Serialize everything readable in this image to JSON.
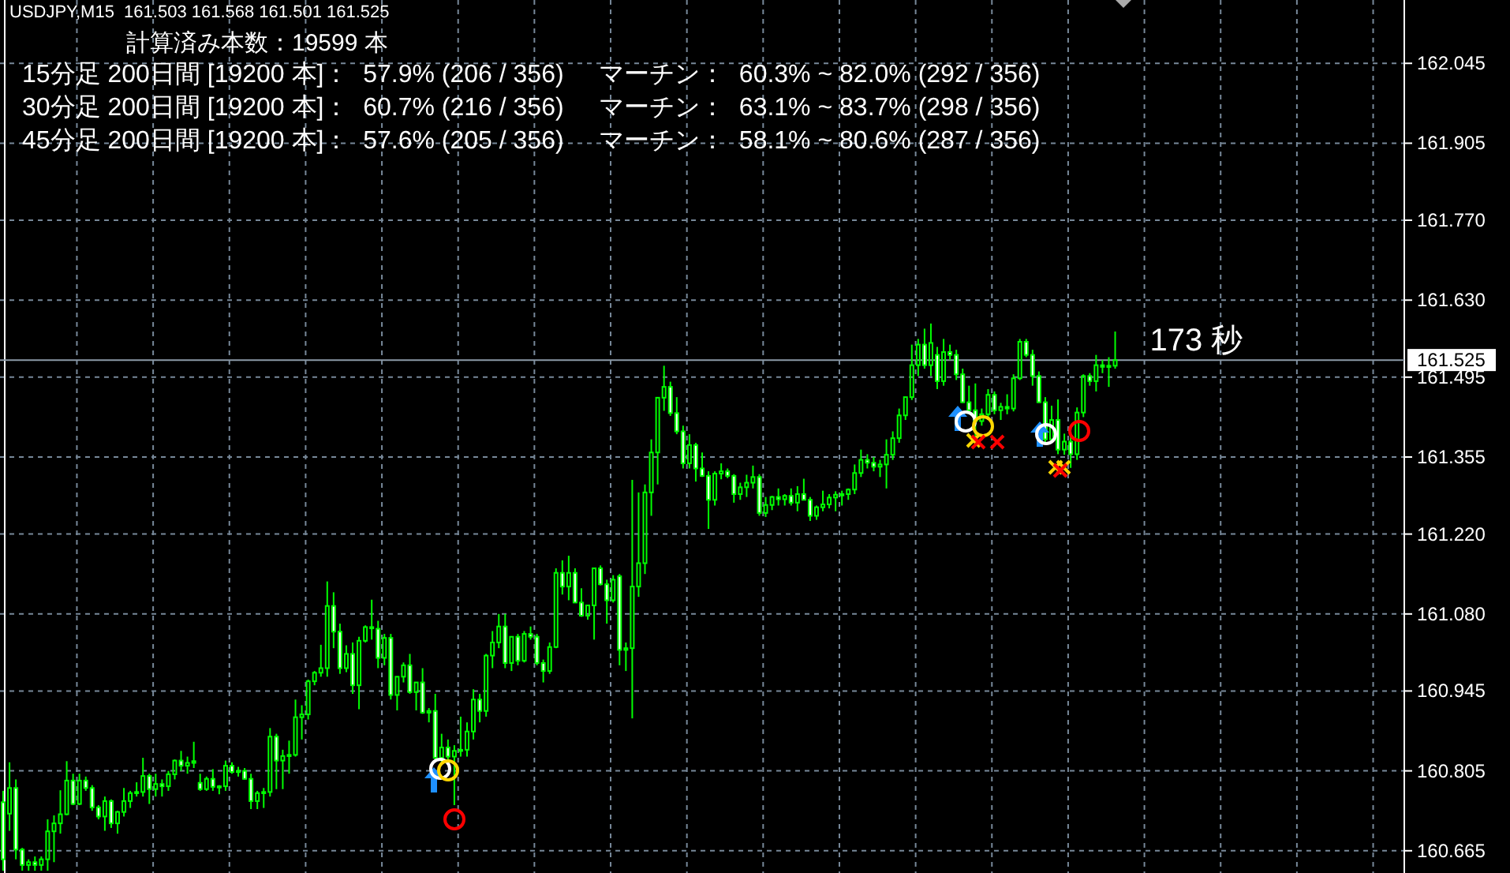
{
  "chart_data": {
    "type": "candlestick",
    "title": "USDJPY,M15  161.503 161.568 161.501 161.525",
    "annotations": [
      "計算済み本数：19599 本",
      "15分足 200日間 [19200 本]：  57.9% (206 / 356)     マーチン：  60.3% ~ 82.0% (292 / 356)",
      "30分足 200日間 [19200 本]：  60.7% (216 / 356)     マーチン：  63.1% ~ 83.7% (298 / 356)",
      "45分足 200日間 [19200 本]：  57.6% (205 / 356)     マーチン：  58.1% ~ 80.6% (287 / 356)",
      "173 秒"
    ],
    "categories": [
      null,
      null,
      null,
      null,
      null,
      null,
      null,
      null,
      null,
      null,
      null,
      null,
      null,
      null,
      null,
      null,
      null,
      null,
      null,
      null,
      null,
      null,
      null,
      null,
      null,
      null,
      null,
      null,
      null,
      null,
      null,
      null,
      null,
      null,
      null,
      null,
      null,
      null,
      null,
      null,
      null,
      null,
      null,
      null,
      null,
      null,
      null,
      null,
      null,
      null,
      null,
      null,
      null,
      null,
      null,
      null,
      null,
      null,
      null,
      null,
      null,
      null,
      null,
      null,
      null,
      null,
      null,
      null,
      null,
      null,
      null,
      null,
      null,
      null,
      null,
      null,
      null,
      null,
      null,
      null,
      null,
      null,
      null,
      null,
      null,
      null,
      null,
      null,
      null,
      null,
      null,
      null,
      null,
      null,
      null,
      null,
      null,
      null,
      null,
      null,
      null,
      null,
      null,
      null,
      null,
      null,
      null,
      null,
      null,
      null,
      null,
      null,
      null,
      null,
      null,
      null,
      null,
      null,
      null,
      null,
      null,
      null,
      null,
      null,
      null,
      null,
      null,
      null,
      null,
      null,
      null,
      null,
      null,
      null,
      null,
      null,
      null,
      null,
      null,
      null,
      null,
      null,
      null,
      null,
      null,
      null,
      null,
      null,
      null,
      null,
      null,
      null,
      null,
      null,
      null,
      null,
      null,
      null,
      null,
      null,
      null,
      null,
      null,
      null,
      null,
      null,
      null,
      null,
      null,
      null,
      null,
      null,
      null,
      null,
      null,
      null,
      null,
      null,
      null,
      null,
      null,
      null,
      null,
      null,
      null,
      null,
      null,
      null,
      null,
      null,
      null,
      null,
      null,
      null,
      null,
      null,
      null,
      null,
      null,
      null,
      null,
      null,
      null,
      null,
      null,
      null,
      null,
      null,
      null,
      null,
      null,
      null,
      null,
      null,
      null,
      null,
      null,
      null,
      null,
      null,
      null
    ],
    "ohlc": [
      [
        160.75,
        160.77,
        160.63,
        160.65
      ],
      [
        160.73,
        160.82,
        160.7,
        160.775
      ],
      [
        160.775,
        160.79,
        160.65,
        160.667
      ],
      [
        160.667,
        160.67,
        160.63,
        160.64
      ],
      [
        160.64,
        160.65,
        160.63,
        160.645
      ],
      [
        160.645,
        160.655,
        160.63,
        160.64
      ],
      [
        160.64,
        160.655,
        160.63,
        160.65
      ],
      [
        160.65,
        160.72,
        160.63,
        160.699
      ],
      [
        160.699,
        160.727,
        160.645,
        160.713
      ],
      [
        160.713,
        160.771,
        160.695,
        160.729
      ],
      [
        160.729,
        160.822,
        160.727,
        160.788
      ],
      [
        160.788,
        160.8,
        160.745,
        160.747
      ],
      [
        160.747,
        160.8,
        160.745,
        160.788
      ],
      [
        160.788,
        160.795,
        160.77,
        160.775
      ],
      [
        160.775,
        160.78,
        160.735,
        160.741
      ],
      [
        160.741,
        160.745,
        160.72,
        160.725
      ],
      [
        160.725,
        160.76,
        160.7,
        160.752
      ],
      [
        160.752,
        160.755,
        160.705,
        160.713
      ],
      [
        160.713,
        160.735,
        160.695,
        160.733
      ],
      [
        160.733,
        160.775,
        160.725,
        160.752
      ],
      [
        160.752,
        160.77,
        160.74,
        160.766
      ],
      [
        160.766,
        160.785,
        160.76,
        160.768
      ],
      [
        160.768,
        160.828,
        160.76,
        160.796
      ],
      [
        160.796,
        160.8,
        160.747,
        160.773
      ],
      [
        160.773,
        160.8,
        160.76,
        160.782
      ],
      [
        160.782,
        160.79,
        160.76,
        160.778
      ],
      [
        160.778,
        160.805,
        160.77,
        160.799
      ],
      [
        160.799,
        160.825,
        160.79,
        160.823
      ],
      [
        160.823,
        160.84,
        160.805,
        160.814
      ],
      [
        160.814,
        160.83,
        160.8,
        160.819
      ],
      [
        160.819,
        160.856,
        160.81,
        160.822
      ],
      [
        160.784,
        160.8,
        160.77,
        160.773
      ],
      [
        160.773,
        160.795,
        160.77,
        160.791
      ],
      [
        160.791,
        160.808,
        160.77,
        160.777
      ],
      [
        160.777,
        160.78,
        160.764,
        160.778
      ],
      [
        160.778,
        160.823,
        160.77,
        160.814
      ],
      [
        160.814,
        160.82,
        160.8,
        160.803
      ],
      [
        160.803,
        160.812,
        160.795,
        160.805
      ],
      [
        160.805,
        160.81,
        160.79,
        160.791
      ],
      [
        160.791,
        160.8,
        160.738,
        160.752
      ],
      [
        160.752,
        160.77,
        160.738,
        160.766
      ],
      [
        160.766,
        160.775,
        160.74,
        160.768
      ],
      [
        160.768,
        160.88,
        160.76,
        160.865
      ],
      [
        160.865,
        160.87,
        160.773,
        160.823
      ],
      [
        160.823,
        160.842,
        160.773,
        160.831
      ],
      [
        160.831,
        160.858,
        160.8,
        160.833
      ],
      [
        160.833,
        160.93,
        160.83,
        160.899
      ],
      [
        160.899,
        160.92,
        160.86,
        160.904
      ],
      [
        160.904,
        160.965,
        160.895,
        160.962
      ],
      [
        160.962,
        160.98,
        160.955,
        160.977
      ],
      [
        160.977,
        161.026,
        160.97,
        160.985
      ],
      [
        160.985,
        161.137,
        160.97,
        161.094
      ],
      [
        161.094,
        161.118,
        161.02,
        161.049
      ],
      [
        161.049,
        161.063,
        160.975,
        160.985
      ],
      [
        160.985,
        161.025,
        160.978,
        161.01
      ],
      [
        161.01,
        161.03,
        160.94,
        160.955
      ],
      [
        160.955,
        161.04,
        160.913,
        161.033
      ],
      [
        161.033,
        161.06,
        161.03,
        161.057
      ],
      [
        161.057,
        161.105,
        161.035,
        161.055
      ],
      [
        161.054,
        161.068,
        160.985,
        161.003
      ],
      [
        161.003,
        161.045,
        160.99,
        161.038
      ],
      [
        161.038,
        161.045,
        160.93,
        160.938
      ],
      [
        160.938,
        160.97,
        160.911,
        160.97
      ],
      [
        160.97,
        160.995,
        160.96,
        160.99
      ],
      [
        160.99,
        161.01,
        160.94,
        160.943
      ],
      [
        160.943,
        160.96,
        160.911,
        160.96
      ],
      [
        160.96,
        160.985,
        160.905,
        160.907
      ],
      [
        160.907,
        160.915,
        160.89,
        160.91
      ],
      [
        160.91,
        160.94,
        160.82,
        160.828
      ],
      [
        160.828,
        160.87,
        160.82,
        160.846
      ],
      [
        160.846,
        160.86,
        160.82,
        160.83
      ],
      [
        160.83,
        160.85,
        160.745,
        160.84
      ],
      [
        160.84,
        160.9,
        160.83,
        160.842
      ],
      [
        160.842,
        160.89,
        160.83,
        160.874
      ],
      [
        160.874,
        160.948,
        160.86,
        160.93
      ],
      [
        160.93,
        160.94,
        160.89,
        160.91
      ],
      [
        160.91,
        161.01,
        160.9,
        161.007
      ],
      [
        161.007,
        161.05,
        160.985,
        161.03
      ],
      [
        161.03,
        161.08,
        161.02,
        161.058
      ],
      [
        161.058,
        161.08,
        160.985,
        160.994
      ],
      [
        160.994,
        161.04,
        160.98,
        161.04
      ],
      [
        161.04,
        161.045,
        160.99,
        160.998
      ],
      [
        160.998,
        161.05,
        160.995,
        161.045
      ],
      [
        161.045,
        161.058,
        161.035,
        161.04
      ],
      [
        161.04,
        161.045,
        160.99,
        160.994
      ],
      [
        160.994,
        161.0,
        160.96,
        160.98
      ],
      [
        160.98,
        161.03,
        160.975,
        161.022
      ],
      [
        161.022,
        161.16,
        161.02,
        161.152
      ],
      [
        161.152,
        161.174,
        161.114,
        161.128
      ],
      [
        161.128,
        161.182,
        161.104,
        161.152
      ],
      [
        161.152,
        161.16,
        161.1,
        161.1
      ],
      [
        161.1,
        161.125,
        161.075,
        161.077
      ],
      [
        161.077,
        161.095,
        161.07,
        161.095
      ],
      [
        161.095,
        161.16,
        161.035,
        161.16
      ],
      [
        161.16,
        161.165,
        161.13,
        161.132
      ],
      [
        161.132,
        161.14,
        161.063,
        161.104
      ],
      [
        161.104,
        161.148,
        161.1,
        161.14
      ],
      [
        161.146,
        161.15,
        160.99,
        161.017
      ],
      [
        161.017,
        161.03,
        160.98,
        161.02
      ],
      [
        161.02,
        161.315,
        160.897,
        161.128
      ],
      [
        161.128,
        161.293,
        161.11,
        161.169
      ],
      [
        161.169,
        161.307,
        161.15,
        161.293
      ],
      [
        161.293,
        161.386,
        161.252,
        161.363
      ],
      [
        161.363,
        161.46,
        161.307,
        161.459
      ],
      [
        161.459,
        161.515,
        161.436,
        161.478
      ],
      [
        161.478,
        161.487,
        161.427,
        161.432
      ],
      [
        161.432,
        161.46,
        161.395,
        161.4
      ],
      [
        161.4,
        161.41,
        161.335,
        161.344
      ],
      [
        161.344,
        161.395,
        161.335,
        161.376
      ],
      [
        161.376,
        161.38,
        161.312,
        161.335
      ],
      [
        161.335,
        161.363,
        161.32,
        161.322
      ],
      [
        161.322,
        161.33,
        161.229,
        161.28
      ],
      [
        161.28,
        161.33,
        161.27,
        161.326
      ],
      [
        161.326,
        161.344,
        161.316,
        161.33
      ],
      [
        161.33,
        161.335,
        161.318,
        161.322
      ],
      [
        161.322,
        161.325,
        161.275,
        161.29
      ],
      [
        161.29,
        161.31,
        161.28,
        161.302
      ],
      [
        161.302,
        161.324,
        161.285,
        161.31
      ],
      [
        161.31,
        161.34,
        161.3,
        161.32
      ],
      [
        161.32,
        161.325,
        161.252,
        161.257
      ],
      [
        161.257,
        161.285,
        161.25,
        161.271
      ],
      [
        161.271,
        161.287,
        161.262,
        161.285
      ],
      [
        161.285,
        161.3,
        161.27,
        161.281
      ],
      [
        161.281,
        161.29,
        161.27,
        161.287
      ],
      [
        161.287,
        161.3,
        161.27,
        161.275
      ],
      [
        161.275,
        161.304,
        161.26,
        161.29
      ],
      [
        161.29,
        161.317,
        161.28,
        161.28
      ],
      [
        161.28,
        161.285,
        161.243,
        161.252
      ],
      [
        161.252,
        161.27,
        161.245,
        161.267
      ],
      [
        161.267,
        161.296,
        161.26,
        161.272
      ],
      [
        161.272,
        161.29,
        161.265,
        161.284
      ],
      [
        161.284,
        161.295,
        161.26,
        161.289
      ],
      [
        161.289,
        161.296,
        161.27,
        161.29
      ],
      [
        161.29,
        161.3,
        161.28,
        161.298
      ],
      [
        161.298,
        161.342,
        161.29,
        161.327
      ],
      [
        161.327,
        161.368,
        161.32,
        161.35
      ],
      [
        161.35,
        161.36,
        161.335,
        161.345
      ],
      [
        161.345,
        161.355,
        161.33,
        161.338
      ],
      [
        161.338,
        161.35,
        161.32,
        161.342
      ],
      [
        161.342,
        161.386,
        161.3,
        161.359
      ],
      [
        161.359,
        161.4,
        161.35,
        161.388
      ],
      [
        161.388,
        161.44,
        161.38,
        161.428
      ],
      [
        161.428,
        161.46,
        161.42,
        161.46
      ],
      [
        161.46,
        161.552,
        161.455,
        161.516
      ],
      [
        161.516,
        161.562,
        161.497,
        161.552
      ],
      [
        161.552,
        161.58,
        161.51,
        161.516
      ],
      [
        161.516,
        161.589,
        161.497,
        161.555
      ],
      [
        161.534,
        161.548,
        161.474,
        161.488
      ],
      [
        161.488,
        161.562,
        161.48,
        161.539
      ],
      [
        161.539,
        161.552,
        161.525,
        161.534
      ],
      [
        161.534,
        161.543,
        161.49,
        161.5
      ],
      [
        161.5,
        161.51,
        161.45,
        161.451
      ],
      [
        161.451,
        161.48,
        161.43,
        161.437
      ],
      [
        161.437,
        161.484,
        161.39,
        161.418
      ],
      [
        161.418,
        161.44,
        161.41,
        161.43
      ],
      [
        161.43,
        161.474,
        161.42,
        161.464
      ],
      [
        161.464,
        161.47,
        161.43,
        161.437
      ],
      [
        161.437,
        161.45,
        161.42,
        161.443
      ],
      [
        161.443,
        161.465,
        161.43,
        161.44
      ],
      [
        161.44,
        161.5,
        161.435,
        161.493
      ],
      [
        161.493,
        161.562,
        161.49,
        161.557
      ],
      [
        161.557,
        161.562,
        161.53,
        161.534
      ],
      [
        161.534,
        161.543,
        161.48,
        161.497
      ],
      [
        161.497,
        161.505,
        161.45,
        161.451
      ],
      [
        161.451,
        161.46,
        161.38,
        161.386
      ],
      [
        161.386,
        161.445,
        161.38,
        161.42
      ],
      [
        161.42,
        161.456,
        161.36,
        161.368
      ],
      [
        161.368,
        161.396,
        161.359,
        161.382
      ],
      [
        161.382,
        161.39,
        161.336,
        161.36
      ],
      [
        161.36,
        161.442,
        161.35,
        161.433
      ],
      [
        161.433,
        161.5,
        161.425,
        161.497
      ],
      [
        161.497,
        161.502,
        161.48,
        161.488
      ],
      [
        161.488,
        161.534,
        161.47,
        161.516
      ],
      [
        161.516,
        161.525,
        161.502,
        161.513
      ],
      [
        161.513,
        161.53,
        161.478,
        161.515
      ],
      [
        161.515,
        161.575,
        161.51,
        161.525
      ],
      null,
      null,
      null,
      null,
      null,
      null,
      null,
      null,
      null,
      null,
      null,
      null,
      null,
      null,
      null,
      null,
      null,
      null,
      null,
      null,
      null,
      null,
      null,
      null,
      null,
      null,
      null,
      null,
      null,
      null,
      null,
      null,
      null,
      null,
      null,
      null,
      null,
      null,
      null,
      null,
      null,
      null,
      null,
      null,
      null
    ],
    "ylim": [
      160.626,
      162.156
    ],
    "yticks": [
      160.665,
      160.805,
      160.945,
      {
        "value": 161.08,
        "label": "161.080"
      },
      {
        "value": 161.22,
        "label": "161.220"
      },
      161.355,
      161.495,
      {
        "value": 161.63,
        "label": "161.630"
      },
      {
        "value": 161.77,
        "label": "161.770"
      },
      161.905,
      162.045
    ],
    "grid": true,
    "tick_labels": "y",
    "ref_lines": [
      {
        "axis": "y",
        "value": 161.525,
        "label": "161.525",
        "color": "#8c9aa8"
      }
    ]
  }
}
